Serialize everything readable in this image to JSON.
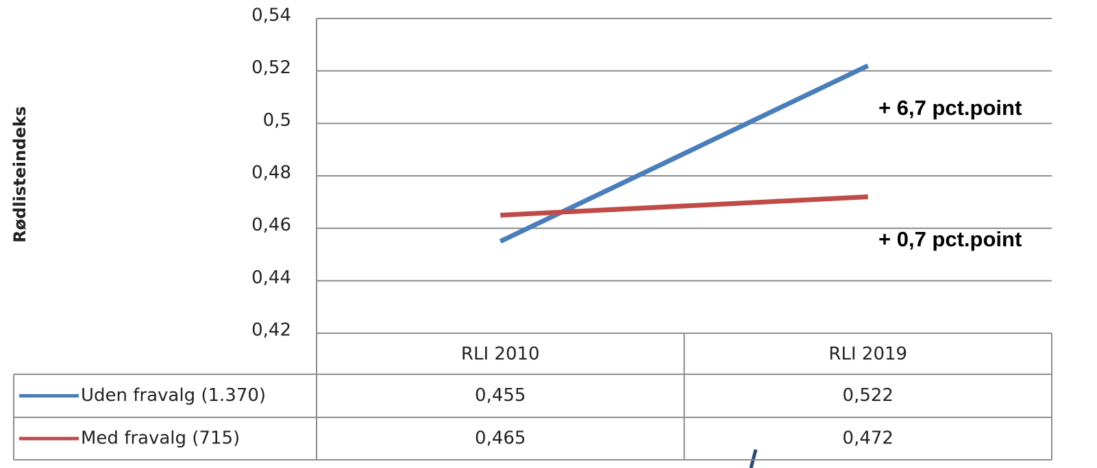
{
  "chart_data": {
    "type": "line",
    "y_label": "Rødlisteindeks",
    "categories": [
      "RLI 2010",
      "RLI 2019"
    ],
    "series": [
      {
        "name": "Uden fravalg (1.370)",
        "color": "#4a7ebb",
        "values": [
          0.455,
          0.522
        ],
        "value_labels": [
          "0,455",
          "0,522"
        ]
      },
      {
        "name": "Med fravalg (715)",
        "color": "#be4b48",
        "values": [
          0.465,
          0.472
        ],
        "value_labels": [
          "0,465",
          "0,472"
        ]
      }
    ],
    "annotations": [
      "+ 6,7 pct.point",
      "+ 0,7 pct.point"
    ],
    "ylim": [
      0.42,
      0.54
    ],
    "yticks": [
      {
        "value": 0.42,
        "label": "0,42"
      },
      {
        "value": 0.44,
        "label": "0,44"
      },
      {
        "value": 0.46,
        "label": "0,46"
      },
      {
        "value": 0.48,
        "label": "0,48"
      },
      {
        "value": 0.5,
        "label": "0,5"
      },
      {
        "value": 0.52,
        "label": "0,52"
      },
      {
        "value": 0.54,
        "label": "0,54"
      }
    ],
    "grid": true
  }
}
